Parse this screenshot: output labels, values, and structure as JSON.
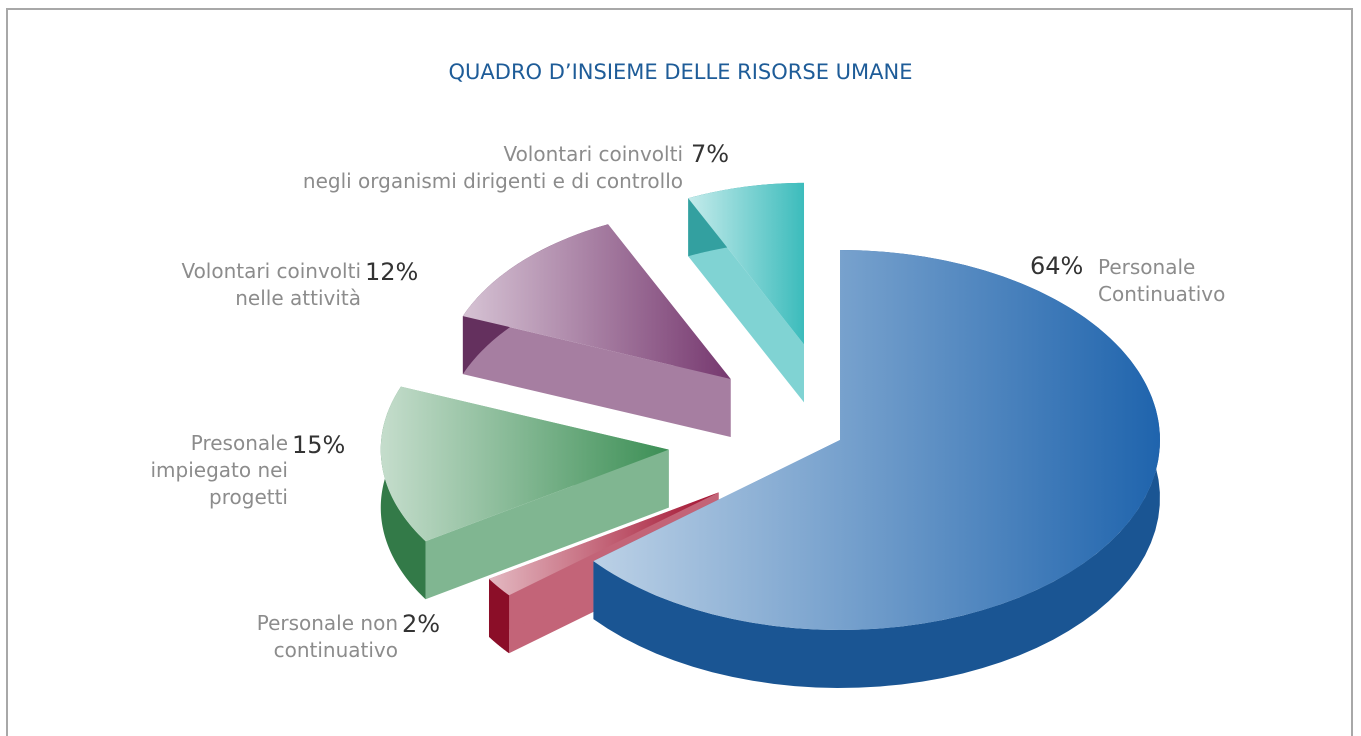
{
  "chart_data": {
    "type": "pie",
    "title": "QUADRO D’INSIEME DELLE RISORSE UMANE",
    "categories": [
      "Personale\nContinuativo",
      "Personale non\ncontinuativo",
      "Presonale\nimpiegato nei\nprogetti",
      "Volontari coinvolti\nnelle attività",
      "Volontari coinvolti\nnegli organismi dirigenti e di controllo"
    ],
    "values": [
      64,
      2,
      15,
      12,
      7
    ],
    "value_labels": [
      "64%",
      "2%",
      "15%",
      "12%",
      "7%"
    ],
    "colors": [
      "#1f64ad",
      "#a3112f",
      "#3c8f55",
      "#76386f",
      "#3cbcbc"
    ]
  }
}
